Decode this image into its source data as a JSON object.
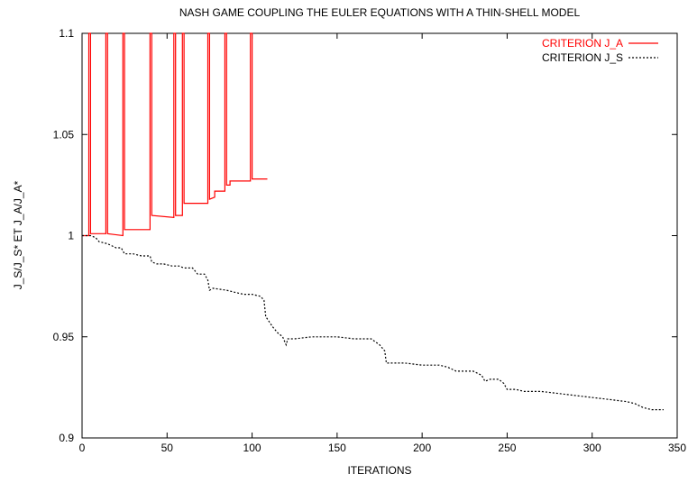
{
  "chart_data": {
    "type": "line",
    "title": "NASH GAME COUPLING THE EULER EQUATIONS WITH A THIN-SHELL MODEL",
    "xlabel": "ITERATIONS",
    "ylabel": "J_S/J_S* ET J_A/J_A*",
    "xlim": [
      0,
      350
    ],
    "ylim": [
      0.9,
      1.1
    ],
    "xticks": [
      0,
      50,
      100,
      150,
      200,
      250,
      300,
      350
    ],
    "yticks": [
      0.9,
      0.95,
      1,
      1.05,
      1.1
    ],
    "xtick_labels": [
      "0",
      "50",
      "100",
      "150",
      "200",
      "250",
      "300",
      "350"
    ],
    "ytick_labels": [
      "0.9",
      "0.95",
      "1",
      "1.05",
      "1.1"
    ],
    "grid": false,
    "legend_position": "top-right",
    "series": [
      {
        "name": "CRITERION J_A",
        "color": "#ff0000",
        "style": "solid",
        "points": [
          [
            0,
            1.0
          ],
          [
            4,
            1.0
          ],
          [
            4,
            1.1
          ],
          [
            5,
            1.1
          ],
          [
            5,
            1.001
          ],
          [
            14,
            1.001
          ],
          [
            14,
            1.1
          ],
          [
            15,
            1.1
          ],
          [
            15,
            1.001
          ],
          [
            24,
            1.0
          ],
          [
            24,
            1.1
          ],
          [
            25,
            1.1
          ],
          [
            25,
            1.003
          ],
          [
            40,
            1.003
          ],
          [
            40,
            1.1
          ],
          [
            41,
            1.1
          ],
          [
            41,
            1.01
          ],
          [
            54,
            1.009
          ],
          [
            54,
            1.1
          ],
          [
            55,
            1.1
          ],
          [
            55,
            1.01
          ],
          [
            59,
            1.01
          ],
          [
            59,
            1.1
          ],
          [
            60,
            1.1
          ],
          [
            60,
            1.016
          ],
          [
            74,
            1.016
          ],
          [
            74,
            1.1
          ],
          [
            75,
            1.1
          ],
          [
            75,
            1.018
          ],
          [
            78,
            1.019
          ],
          [
            78,
            1.022
          ],
          [
            84,
            1.022
          ],
          [
            84,
            1.1
          ],
          [
            85,
            1.1
          ],
          [
            85,
            1.025
          ],
          [
            87,
            1.025
          ],
          [
            87,
            1.027
          ],
          [
            95,
            1.027
          ],
          [
            99,
            1.027
          ],
          [
            99,
            1.1
          ],
          [
            100,
            1.1
          ],
          [
            100,
            1.028
          ],
          [
            109,
            1.028
          ]
        ]
      },
      {
        "name": "CRITERION J_S",
        "color": "#000000",
        "style": "dotted",
        "points": [
          [
            0,
            1.0
          ],
          [
            5,
            1.0
          ],
          [
            8,
            0.999
          ],
          [
            10,
            0.997
          ],
          [
            15,
            0.996
          ],
          [
            20,
            0.994
          ],
          [
            23,
            0.994
          ],
          [
            25,
            0.991
          ],
          [
            30,
            0.991
          ],
          [
            35,
            0.99
          ],
          [
            40,
            0.99
          ],
          [
            41,
            0.987
          ],
          [
            44,
            0.986
          ],
          [
            48,
            0.986
          ],
          [
            53,
            0.985
          ],
          [
            57,
            0.985
          ],
          [
            60,
            0.984
          ],
          [
            65,
            0.984
          ],
          [
            68,
            0.981
          ],
          [
            72,
            0.981
          ],
          [
            74,
            0.978
          ],
          [
            75,
            0.973
          ],
          [
            77,
            0.974
          ],
          [
            85,
            0.973
          ],
          [
            90,
            0.972
          ],
          [
            95,
            0.971
          ],
          [
            100,
            0.971
          ],
          [
            105,
            0.97
          ],
          [
            107,
            0.968
          ],
          [
            108,
            0.96
          ],
          [
            112,
            0.955
          ],
          [
            115,
            0.952
          ],
          [
            118,
            0.95
          ],
          [
            120,
            0.946
          ],
          [
            121,
            0.949
          ],
          [
            125,
            0.949
          ],
          [
            135,
            0.95
          ],
          [
            150,
            0.95
          ],
          [
            160,
            0.949
          ],
          [
            170,
            0.949
          ],
          [
            175,
            0.946
          ],
          [
            178,
            0.943
          ],
          [
            179,
            0.937
          ],
          [
            181,
            0.937
          ],
          [
            190,
            0.937
          ],
          [
            200,
            0.936
          ],
          [
            210,
            0.936
          ],
          [
            215,
            0.935
          ],
          [
            220,
            0.933
          ],
          [
            230,
            0.933
          ],
          [
            235,
            0.931
          ],
          [
            237,
            0.928
          ],
          [
            240,
            0.929
          ],
          [
            245,
            0.929
          ],
          [
            248,
            0.927
          ],
          [
            250,
            0.924
          ],
          [
            255,
            0.924
          ],
          [
            260,
            0.923
          ],
          [
            270,
            0.923
          ],
          [
            280,
            0.922
          ],
          [
            290,
            0.921
          ],
          [
            300,
            0.92
          ],
          [
            310,
            0.919
          ],
          [
            320,
            0.918
          ],
          [
            325,
            0.917
          ],
          [
            330,
            0.915
          ],
          [
            335,
            0.914
          ],
          [
            340,
            0.914
          ],
          [
            342,
            0.914
          ]
        ]
      }
    ]
  }
}
